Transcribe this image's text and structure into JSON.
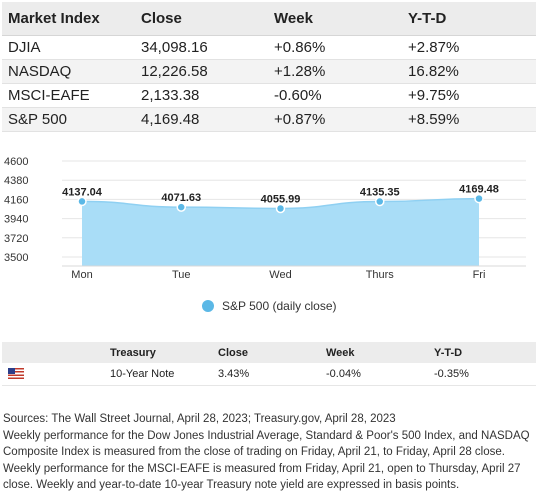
{
  "market_table": {
    "headers": [
      "Market Index",
      "Close",
      "Week",
      "Y-T-D"
    ],
    "rows": [
      [
        "DJIA",
        "34,098.16",
        "+0.86%",
        "+2.87%"
      ],
      [
        "NASDAQ",
        "12,226.58",
        "+1.28%",
        "16.82%"
      ],
      [
        "MSCI-EAFE",
        "2,133.38",
        "-0.60%",
        "+9.75%"
      ],
      [
        "S&P 500",
        "4,169.48",
        "+0.87%",
        "+8.59%"
      ]
    ]
  },
  "chart_data": {
    "type": "area",
    "categories": [
      "Mon",
      "Tue",
      "Wed",
      "Thurs",
      "Fri"
    ],
    "series": [
      {
        "name": "S&P 500 (daily close)",
        "values": [
          4137.04,
          4071.63,
          4055.99,
          4135.35,
          4169.48
        ]
      }
    ],
    "data_labels": [
      "4137.04",
      "4071.63",
      "4055.99",
      "4135.35",
      "4169.48"
    ],
    "y_ticks": [
      4600,
      4380,
      4160,
      3940,
      3720,
      3500
    ],
    "ylim": [
      3500,
      4600
    ],
    "legend": "bottom",
    "grid": true,
    "color": "#a9ddf7",
    "point_color": "#5bb8e6"
  },
  "legend": {
    "label": "S&P 500 (daily close)"
  },
  "treasury_table": {
    "headers": [
      "",
      "Treasury",
      "Close",
      "Week",
      "Y-T-D"
    ],
    "row": {
      "flag_icon": "us-flag-icon",
      "name": "10-Year Note",
      "close": "3.43%",
      "week": "-0.04%",
      "ytd": "-0.35%"
    }
  },
  "notes": {
    "sources": "Sources: The Wall Street Journal, April 28, 2023; Treasury.gov, April 28, 2023",
    "body": "Weekly performance for the Dow Jones Industrial Average, Standard & Poor's 500 Index, and NASDAQ Composite Index is measured from the close of trading on Friday, April 21, to Friday, April 28 close. Weekly performance for the MSCI-EAFE is measured from Friday, April 21, open to Thursday, April 27 close. Weekly and year-to-date 10-year Treasury note yield are expressed in basis points."
  }
}
